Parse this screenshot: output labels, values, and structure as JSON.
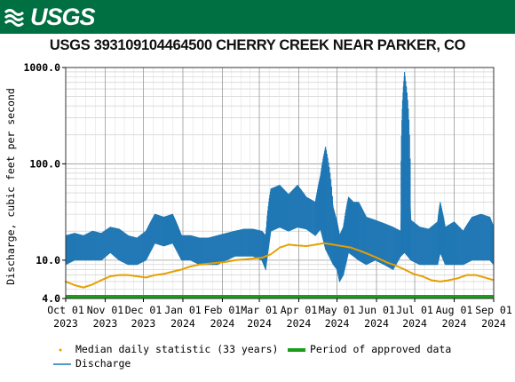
{
  "header": {
    "logo_text": "USGS",
    "brand_color": "#006f41"
  },
  "chart_data": {
    "type": "line",
    "title": "USGS 393109104464500 CHERRY CREEK NEAR PARKER, CO",
    "ylabel": "Discharge, cubic feet per second",
    "xlabel": "",
    "y_scale": "log",
    "ylim": [
      4.0,
      1000.0
    ],
    "y_ticks": [
      {
        "value": 4.0,
        "label": "4.0"
      },
      {
        "value": 10.0,
        "label": "10.0"
      },
      {
        "value": 100.0,
        "label": "100.0"
      },
      {
        "value": 1000.0,
        "label": "1000.0"
      }
    ],
    "xlim": [
      "2023-10-01",
      "2024-09-01"
    ],
    "x_ticks": [
      {
        "date": "2023-10-01",
        "month": "Oct 01",
        "year": "2023"
      },
      {
        "date": "2023-11-01",
        "month": "Nov 01",
        "year": "2023"
      },
      {
        "date": "2023-12-01",
        "month": "Dec 01",
        "year": "2023"
      },
      {
        "date": "2024-01-01",
        "month": "Jan 01",
        "year": "2024"
      },
      {
        "date": "2024-02-01",
        "month": "Feb 01",
        "year": "2024"
      },
      {
        "date": "2024-03-01",
        "month": "Mar 01",
        "year": "2024"
      },
      {
        "date": "2024-04-01",
        "month": "Apr 01",
        "year": "2024"
      },
      {
        "date": "2024-05-01",
        "month": "May 01",
        "year": "2024"
      },
      {
        "date": "2024-06-01",
        "month": "Jun 01",
        "year": "2024"
      },
      {
        "date": "2024-07-01",
        "month": "Jul 01",
        "year": "2024"
      },
      {
        "date": "2024-08-01",
        "month": "Aug 01",
        "year": "2024"
      },
      {
        "date": "2024-09-01",
        "month": "Sep 01",
        "year": "2024"
      }
    ],
    "grid": true,
    "legend_placement": "bottom",
    "series": [
      {
        "name": "Discharge",
        "color": "#1f77b4",
        "x": [
          "2023-10-01",
          "2023-10-08",
          "2023-10-15",
          "2023-10-22",
          "2023-10-29",
          "2023-11-05",
          "2023-11-12",
          "2023-11-19",
          "2023-11-26",
          "2023-12-03",
          "2023-12-10",
          "2023-12-17",
          "2023-12-24",
          "2023-12-31",
          "2024-01-07",
          "2024-01-14",
          "2024-01-21",
          "2024-01-28",
          "2024-02-04",
          "2024-02-11",
          "2024-02-18",
          "2024-02-25",
          "2024-03-03",
          "2024-03-06",
          "2024-03-10",
          "2024-03-17",
          "2024-03-24",
          "2024-03-31",
          "2024-04-07",
          "2024-04-14",
          "2024-04-18",
          "2024-04-22",
          "2024-04-28",
          "2024-05-01",
          "2024-05-03",
          "2024-05-06",
          "2024-05-10",
          "2024-05-14",
          "2024-05-18",
          "2024-05-24",
          "2024-05-31",
          "2024-06-07",
          "2024-06-14",
          "2024-06-20",
          "2024-06-23",
          "2024-06-28",
          "2024-07-05",
          "2024-07-12",
          "2024-07-19",
          "2024-07-21",
          "2024-07-25",
          "2024-08-01",
          "2024-08-08",
          "2024-08-15",
          "2024-08-22",
          "2024-08-29",
          "2024-09-01"
        ],
        "min": [
          9,
          10,
          10,
          10,
          10,
          12,
          10,
          9,
          9,
          10,
          15,
          14,
          15,
          10,
          10,
          9,
          9,
          9,
          10,
          11,
          11,
          11,
          10,
          8,
          20,
          22,
          20,
          22,
          21,
          18,
          21,
          13,
          9,
          8,
          6,
          7,
          12,
          11,
          10,
          9,
          10,
          9,
          8,
          11,
          12,
          10,
          9,
          9,
          9,
          12,
          9,
          9,
          9,
          10,
          10,
          10,
          9
        ],
        "max": [
          18,
          19,
          18,
          20,
          19,
          22,
          21,
          18,
          17,
          20,
          30,
          28,
          30,
          18,
          18,
          17,
          17,
          18,
          19,
          20,
          21,
          21,
          20,
          18,
          55,
          60,
          48,
          60,
          45,
          40,
          75,
          150,
          35,
          25,
          18,
          22,
          45,
          40,
          40,
          28,
          26,
          24,
          22,
          20,
          900,
          26,
          22,
          21,
          25,
          40,
          22,
          25,
          20,
          28,
          30,
          28,
          22
        ]
      },
      {
        "name": "Median daily statistic (33 years)",
        "color": "#e69f00",
        "x": [
          "2023-10-01",
          "2023-10-08",
          "2023-10-15",
          "2023-10-22",
          "2023-10-29",
          "2023-11-05",
          "2023-11-12",
          "2023-11-19",
          "2023-11-26",
          "2023-12-03",
          "2023-12-10",
          "2023-12-17",
          "2023-12-24",
          "2023-12-31",
          "2024-01-07",
          "2024-01-14",
          "2024-01-21",
          "2024-01-28",
          "2024-02-04",
          "2024-02-11",
          "2024-02-18",
          "2024-02-25",
          "2024-03-03",
          "2024-03-10",
          "2024-03-17",
          "2024-03-24",
          "2024-03-31",
          "2024-04-07",
          "2024-04-14",
          "2024-04-21",
          "2024-04-28",
          "2024-05-05",
          "2024-05-12",
          "2024-05-19",
          "2024-05-26",
          "2024-06-02",
          "2024-06-09",
          "2024-06-16",
          "2024-06-23",
          "2024-06-30",
          "2024-07-07",
          "2024-07-14",
          "2024-07-21",
          "2024-07-28",
          "2024-08-04",
          "2024-08-11",
          "2024-08-18",
          "2024-08-25",
          "2024-09-01"
        ],
        "values": [
          6.0,
          5.5,
          5.2,
          5.6,
          6.2,
          6.8,
          7.0,
          7.0,
          6.8,
          6.6,
          7.0,
          7.2,
          7.6,
          8.0,
          8.6,
          9.0,
          9.2,
          9.4,
          9.6,
          10.0,
          10.2,
          10.4,
          10.6,
          11.5,
          13.5,
          14.5,
          14.2,
          14.0,
          14.5,
          15.0,
          14.5,
          14.0,
          13.5,
          12.5,
          11.5,
          10.5,
          9.5,
          8.8,
          8.0,
          7.2,
          6.8,
          6.2,
          6.0,
          6.2,
          6.5,
          7.0,
          7.0,
          6.6,
          6.2
        ]
      },
      {
        "name": "Period of approved data",
        "color": "#2ca02c",
        "x": [
          "2023-10-01",
          "2024-09-01"
        ]
      }
    ]
  }
}
